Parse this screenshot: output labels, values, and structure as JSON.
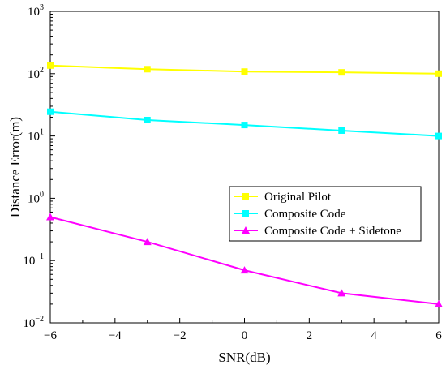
{
  "chart_data": {
    "type": "line",
    "xlabel": "SNR(dB)",
    "ylabel": "Distance Error(m)",
    "x": [
      -6,
      -3,
      0,
      3,
      6
    ],
    "xlim": [
      -6,
      6
    ],
    "xticks": [
      -6,
      -4,
      -2,
      0,
      2,
      4,
      6
    ],
    "ylim": [
      0.01,
      1000
    ],
    "yscale": "log",
    "yticks": [
      {
        "value": 0.01,
        "base": "10",
        "exp": "-2"
      },
      {
        "value": 0.1,
        "base": "10",
        "exp": "-1"
      },
      {
        "value": 1,
        "base": "10",
        "exp": "0"
      },
      {
        "value": 10,
        "base": "10",
        "exp": "1"
      },
      {
        "value": 100,
        "base": "10",
        "exp": "2"
      },
      {
        "value": 1000,
        "base": "10",
        "exp": "3"
      }
    ],
    "grid": false,
    "legend_position": "center-right",
    "series": [
      {
        "name": "Original Pilot",
        "color": "#ffff00",
        "marker": "square",
        "values": [
          135,
          118,
          108,
          105,
          100
        ]
      },
      {
        "name": "Composite Code",
        "color": "#00ffff",
        "marker": "square",
        "values": [
          24.5,
          18,
          15,
          12.2,
          10
        ]
      },
      {
        "name": "Composite Code + Sidetone",
        "color": "#ff00ff",
        "marker": "triangle",
        "values": [
          0.5,
          0.2,
          0.07,
          0.03,
          0.02
        ]
      }
    ]
  }
}
